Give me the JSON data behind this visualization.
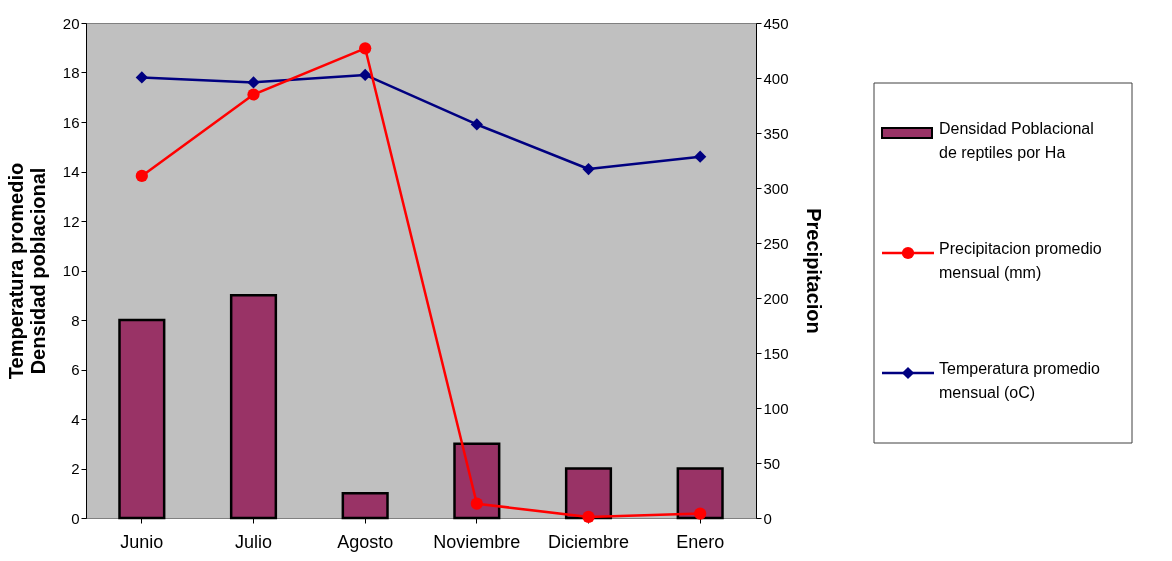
{
  "chart_data": {
    "type": "bar",
    "categories": [
      "Junio",
      "Julio",
      "Agosto",
      "Noviembre",
      "Diciembre",
      "Enero"
    ],
    "ylabel": "Temperatura promedio\nDensidad poblacional",
    "y2label": "Precipitacion",
    "ylim": [
      0,
      20
    ],
    "yticks": [
      0,
      2,
      4,
      6,
      8,
      10,
      12,
      14,
      16,
      18,
      20
    ],
    "y2lim": [
      0,
      450
    ],
    "y2ticks": [
      0,
      50,
      100,
      150,
      200,
      250,
      300,
      350,
      400,
      450
    ],
    "grid": false,
    "legend": "right",
    "series": [
      {
        "name": "Densidad Poblacional de reptiles por Ha",
        "color": "#993366",
        "values": [
          8,
          9,
          1,
          3,
          2,
          2
        ]
      },
      {
        "name": "Precipitacion promedio mensual (mm)",
        "type": "line",
        "axis": "y2",
        "color": "#ff0000",
        "marker": "circle",
        "values": [
          311,
          385,
          427,
          13,
          1,
          4
        ]
      },
      {
        "name": "Temperatura promedio mensual (oC)",
        "type": "line",
        "color": "#000080",
        "marker": "diamond",
        "values": [
          17.8,
          17.6,
          17.9,
          15.9,
          14.1,
          14.6
        ]
      }
    ]
  }
}
